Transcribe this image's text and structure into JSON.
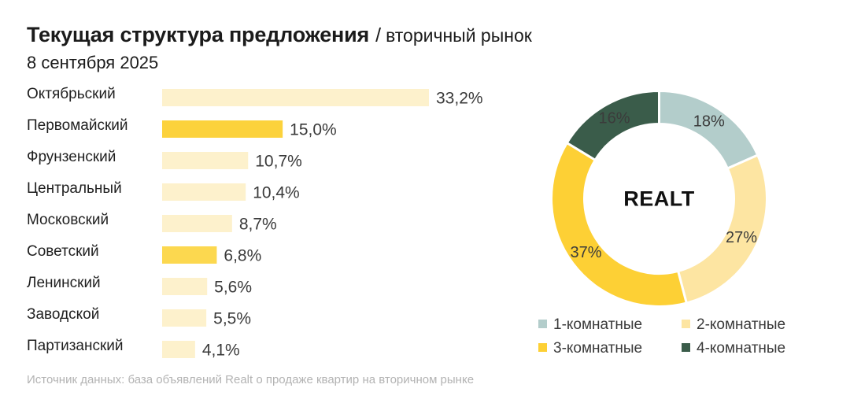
{
  "header": {
    "title": "Текущая структура предложения",
    "separator": "/",
    "subtitle": "вторичный рынок",
    "date": "8 сентября 2025"
  },
  "chart_data": [
    {
      "type": "bar",
      "orientation": "horizontal",
      "categories": [
        "Октябрьский",
        "Первомайский",
        "Фрунзенский",
        "Центральный",
        "Московский",
        "Советский",
        "Ленинский",
        "Заводской",
        "Партизанский"
      ],
      "values": [
        33.2,
        15.0,
        10.7,
        10.4,
        8.7,
        6.8,
        5.6,
        5.5,
        4.1
      ],
      "value_labels": [
        "33,2%",
        "15,0%",
        "10,7%",
        "10,4%",
        "8,7%",
        "6,8%",
        "5,6%",
        "5,5%",
        "4,1%"
      ],
      "bar_colors": [
        "#fdf1cc",
        "#fcd23c",
        "#fdf1cc",
        "#fdf1cc",
        "#fdf1cc",
        "#fcd84f",
        "#fdf1cc",
        "#fdf1cc",
        "#fdf1cc"
      ],
      "xlim": [
        0,
        33.2
      ],
      "grid": false
    },
    {
      "type": "pie",
      "variant": "donut",
      "categories": [
        "1-комнатные",
        "2-комнатные",
        "3-комнатные",
        "4-комнатные"
      ],
      "values": [
        18,
        27,
        37,
        16
      ],
      "value_labels": [
        "18%",
        "27%",
        "37%",
        "16%"
      ],
      "colors": [
        "#b3cdcb",
        "#fde5a2",
        "#fdd035",
        "#3a5c4a"
      ],
      "center_label": "REALT",
      "legend": "bottom"
    }
  ],
  "source": "Источник данных: база объявлений Realt о продаже квартир на вторичном рынке"
}
